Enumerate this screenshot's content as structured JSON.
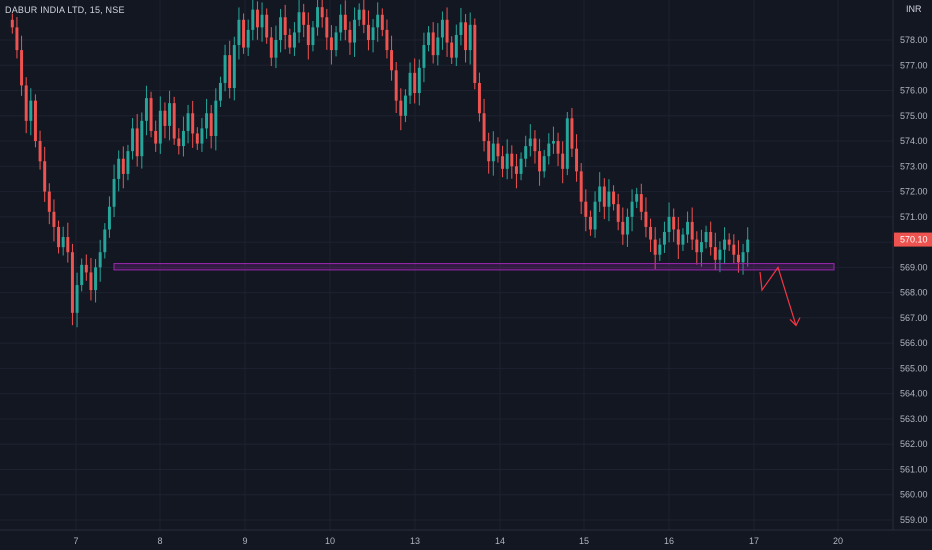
{
  "chart_data": {
    "type": "candlestick",
    "title": "DABUR INDIA LTD, 15, NSE",
    "currency": "INR",
    "last_price": "570.10",
    "y_range": [
      558.5,
      579.0
    ],
    "y_ticks": [
      "559.00",
      "560.00",
      "561.00",
      "562.00",
      "563.00",
      "564.00",
      "565.00",
      "566.00",
      "567.00",
      "568.00",
      "569.00",
      "570.00",
      "571.00",
      "572.00",
      "573.00",
      "574.00",
      "575.00",
      "576.00",
      "577.00",
      "578.00"
    ],
    "x_ticks": [
      "7",
      "8",
      "9",
      "10",
      "13",
      "14",
      "15",
      "16",
      "17",
      "20"
    ],
    "colors": {
      "up": "#26a69a",
      "down": "#ef5350",
      "zone": "#9c27b0",
      "projection": "#f23645",
      "background": "#131722",
      "grid": "#1e2230"
    },
    "sessions": [
      {
        "label": "7",
        "points": [
          578.5,
          577.6,
          576.2,
          574.8,
          575.6,
          574.0,
          573.2,
          572.0,
          571.2,
          570.6,
          569.8,
          570.2,
          569.6,
          567.2,
          568.3,
          569.1,
          568.8,
          568.1,
          569.0,
          569.6
        ]
      },
      {
        "label": "8",
        "points": [
          570.5,
          571.4,
          572.5,
          573.3,
          572.7,
          573.6,
          574.5,
          573.4,
          574.8,
          575.7,
          574.4,
          573.9,
          575.2,
          574.6,
          575.5,
          574.1,
          573.8,
          574.4,
          575.1,
          574.3
        ]
      },
      {
        "label": "9",
        "points": [
          573.9,
          574.5,
          575.1,
          574.2,
          575.6,
          576.3,
          577.4,
          576.1,
          577.8,
          578.8,
          577.7,
          578.4,
          579.2,
          578.5,
          579.0,
          578.1,
          577.3,
          578.0,
          578.9,
          578.2
        ]
      },
      {
        "label": "10",
        "points": [
          577.7,
          578.3,
          579.1,
          578.6,
          577.8,
          578.5,
          579.3,
          578.9,
          578.1,
          577.6,
          578.3,
          579.0,
          578.4,
          577.9,
          578.8,
          579.2,
          578.6,
          578.0,
          578.5,
          579.0
        ]
      },
      {
        "label": "13",
        "points": [
          578.4,
          577.6,
          576.8,
          575.6,
          575.0,
          575.8,
          576.7,
          575.9,
          576.9,
          577.8,
          578.3,
          577.4,
          578.1,
          578.8,
          577.9,
          577.3,
          578.2,
          578.7,
          577.6,
          578.6
        ]
      },
      {
        "label": "14",
        "points": [
          576.3,
          575.1,
          574.0,
          573.2,
          573.9,
          573.4,
          572.9,
          573.5,
          573.0,
          572.7,
          573.3,
          573.8,
          574.1,
          573.6,
          572.8,
          573.4,
          573.9,
          574.0,
          573.5,
          572.9
        ]
      },
      {
        "label": "15",
        "points": [
          574.9,
          573.7,
          572.8,
          571.6,
          571.0,
          570.5,
          571.6,
          572.2,
          571.4,
          572.0,
          571.5,
          570.8,
          570.3,
          571.0,
          571.6,
          571.9,
          571.2,
          570.6,
          570.1,
          569.5
        ]
      },
      {
        "label": "16",
        "points": [
          569.9,
          570.4,
          571.0,
          570.5,
          569.9,
          570.3,
          570.8,
          570.1,
          569.6,
          570.0,
          570.4,
          569.8,
          569.3,
          569.7,
          570.1,
          569.9,
          569.5,
          569.2,
          569.6,
          570.1
        ]
      }
    ],
    "support_zone": {
      "from": 569.15,
      "to": 568.9
    },
    "projection_path": [
      [
        569.0,
        568.1
      ],
      [
        568.9,
        566.7
      ]
    ]
  }
}
